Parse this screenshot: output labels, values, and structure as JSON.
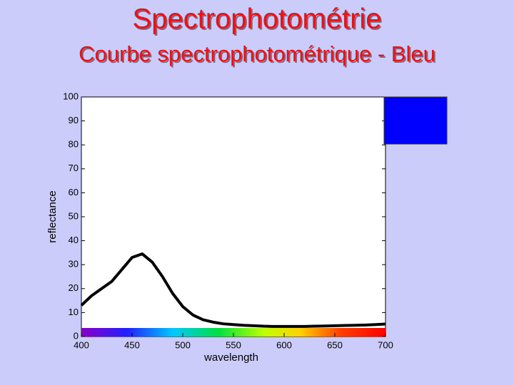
{
  "chart_data": {
    "type": "line",
    "title": "Spectrophotométrie",
    "subtitle": "Courbe spectrophotométrique - Bleu",
    "x_label": "wavelength",
    "y_label": "reflectance",
    "x": [
      400,
      410,
      420,
      430,
      440,
      450,
      460,
      470,
      480,
      490,
      500,
      510,
      520,
      530,
      540,
      550,
      560,
      570,
      580,
      590,
      600,
      610,
      620,
      630,
      640,
      650,
      660,
      670,
      680,
      690,
      700
    ],
    "series": [
      {
        "name": "Bleu",
        "color": "#000000",
        "values": [
          13,
          17,
          20,
          23,
          28,
          33,
          34.5,
          31,
          25,
          18,
          12.5,
          9,
          7,
          6,
          5.3,
          5,
          4.7,
          4.5,
          4.3,
          4.2,
          4.2,
          4.2,
          4.2,
          4.3,
          4.4,
          4.5,
          4.6,
          4.7,
          4.8,
          5,
          5.2
        ]
      }
    ],
    "swatch_color": "#0000ff",
    "xlim": [
      400,
      700
    ],
    "xticks": [
      400,
      450,
      500,
      550,
      600,
      650,
      700
    ],
    "ylim": [
      0,
      100
    ],
    "yticks": [
      0,
      10,
      20,
      30,
      40,
      50,
      60,
      70,
      80,
      90,
      100
    ],
    "grid": false
  }
}
